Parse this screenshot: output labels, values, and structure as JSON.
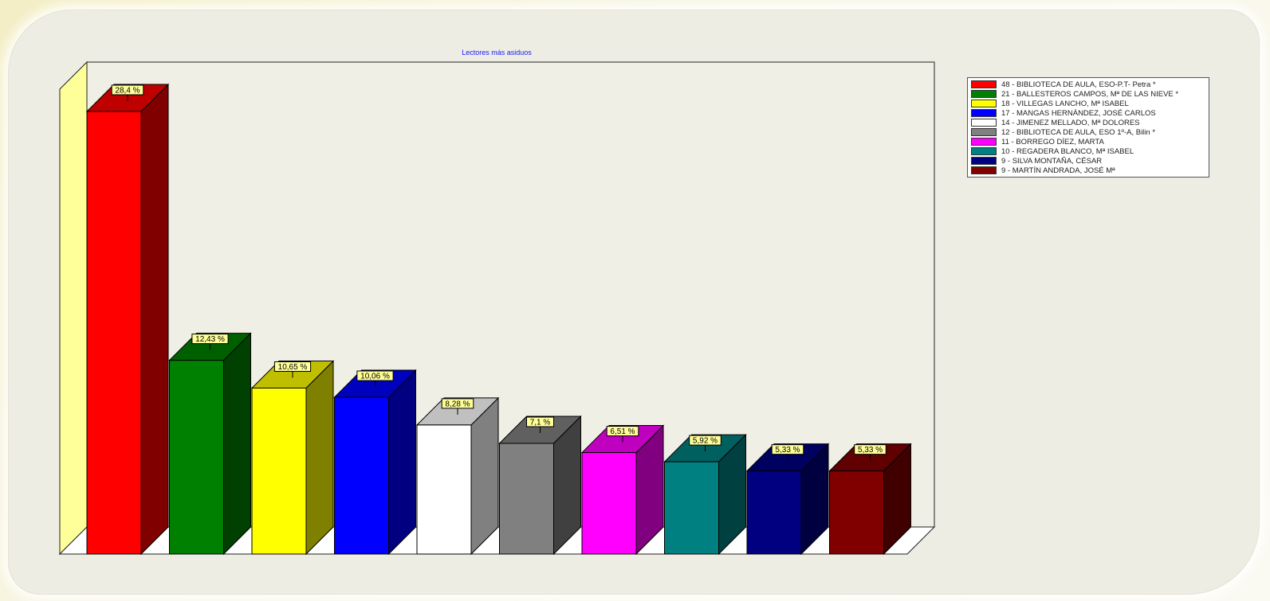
{
  "chart_data": {
    "type": "bar",
    "title": "Lectores más asiduos",
    "categories": [
      "BIBLIOTECA DE AULA, ESO-P.T- Petra  *",
      "BALLESTEROS CAMPOS, Mª DE LAS NIEVE *",
      "VILLEGAS LANCHO, Mª ISABEL",
      "MANGAS HERNÁNDEZ, JOSÉ CARLOS",
      "JIMENEZ MELLADO, Mª DOLORES",
      "BIBLIOTECA DE AULA, ESO 1º-A, Bilin *",
      "BORREGO DÍEZ, MARTA",
      "REGADERA BLANCO, Mª ISABEL",
      "SILVA MONTAÑA, CÉSAR",
      "MARTÍN ANDRADA, JOSÉ Mª"
    ],
    "counts": [
      48,
      21,
      18,
      17,
      14,
      12,
      11,
      10,
      9,
      9
    ],
    "values": [
      28.4,
      12.43,
      10.65,
      10.06,
      8.28,
      7.1,
      6.51,
      5.92,
      5.33,
      5.33
    ],
    "data_labels": [
      "28,4 %",
      "12,43 %",
      "10,65 %",
      "10,06 %",
      "8,28 %",
      "7,1 %",
      "6,51 %",
      "5,92 %",
      "5,33 %",
      "5,33 %"
    ],
    "colors": [
      "#ff0000",
      "#008000",
      "#ffff00",
      "#0000ff",
      "#ffffff",
      "#808080",
      "#ff00ff",
      "#008080",
      "#000080",
      "#800000"
    ],
    "legend_placement": "top-right",
    "grid": false,
    "style": "3d-bar"
  },
  "legend": {
    "items": [
      {
        "count": "48",
        "label": "BIBLIOTECA DE AULA, ESO-P.T- Petra  *",
        "color": "#ff0000"
      },
      {
        "count": "21",
        "label": "BALLESTEROS CAMPOS, Mª DE LAS NIEVE *",
        "color": "#008000"
      },
      {
        "count": "18",
        "label": "VILLEGAS LANCHO, Mª ISABEL",
        "color": "#ffff00"
      },
      {
        "count": "17",
        "label": "MANGAS HERNÁNDEZ, JOSÉ CARLOS",
        "color": "#0000ff"
      },
      {
        "count": "14",
        "label": "JIMENEZ MELLADO, Mª DOLORES",
        "color": "#ffffff"
      },
      {
        "count": "12",
        "label": "BIBLIOTECA DE AULA, ESO 1º-A, Bilin *",
        "color": "#808080"
      },
      {
        "count": "11",
        "label": "BORREGO DÍEZ, MARTA",
        "color": "#ff00ff"
      },
      {
        "count": "10",
        "label": "REGADERA BLANCO, Mª ISABEL",
        "color": "#008080"
      },
      {
        "count": "9",
        "label": "SILVA MONTAÑA, CÉSAR",
        "color": "#000080"
      },
      {
        "count": "9",
        "label": "MARTÍN ANDRADA, JOSÉ Mª",
        "color": "#800000"
      }
    ]
  }
}
